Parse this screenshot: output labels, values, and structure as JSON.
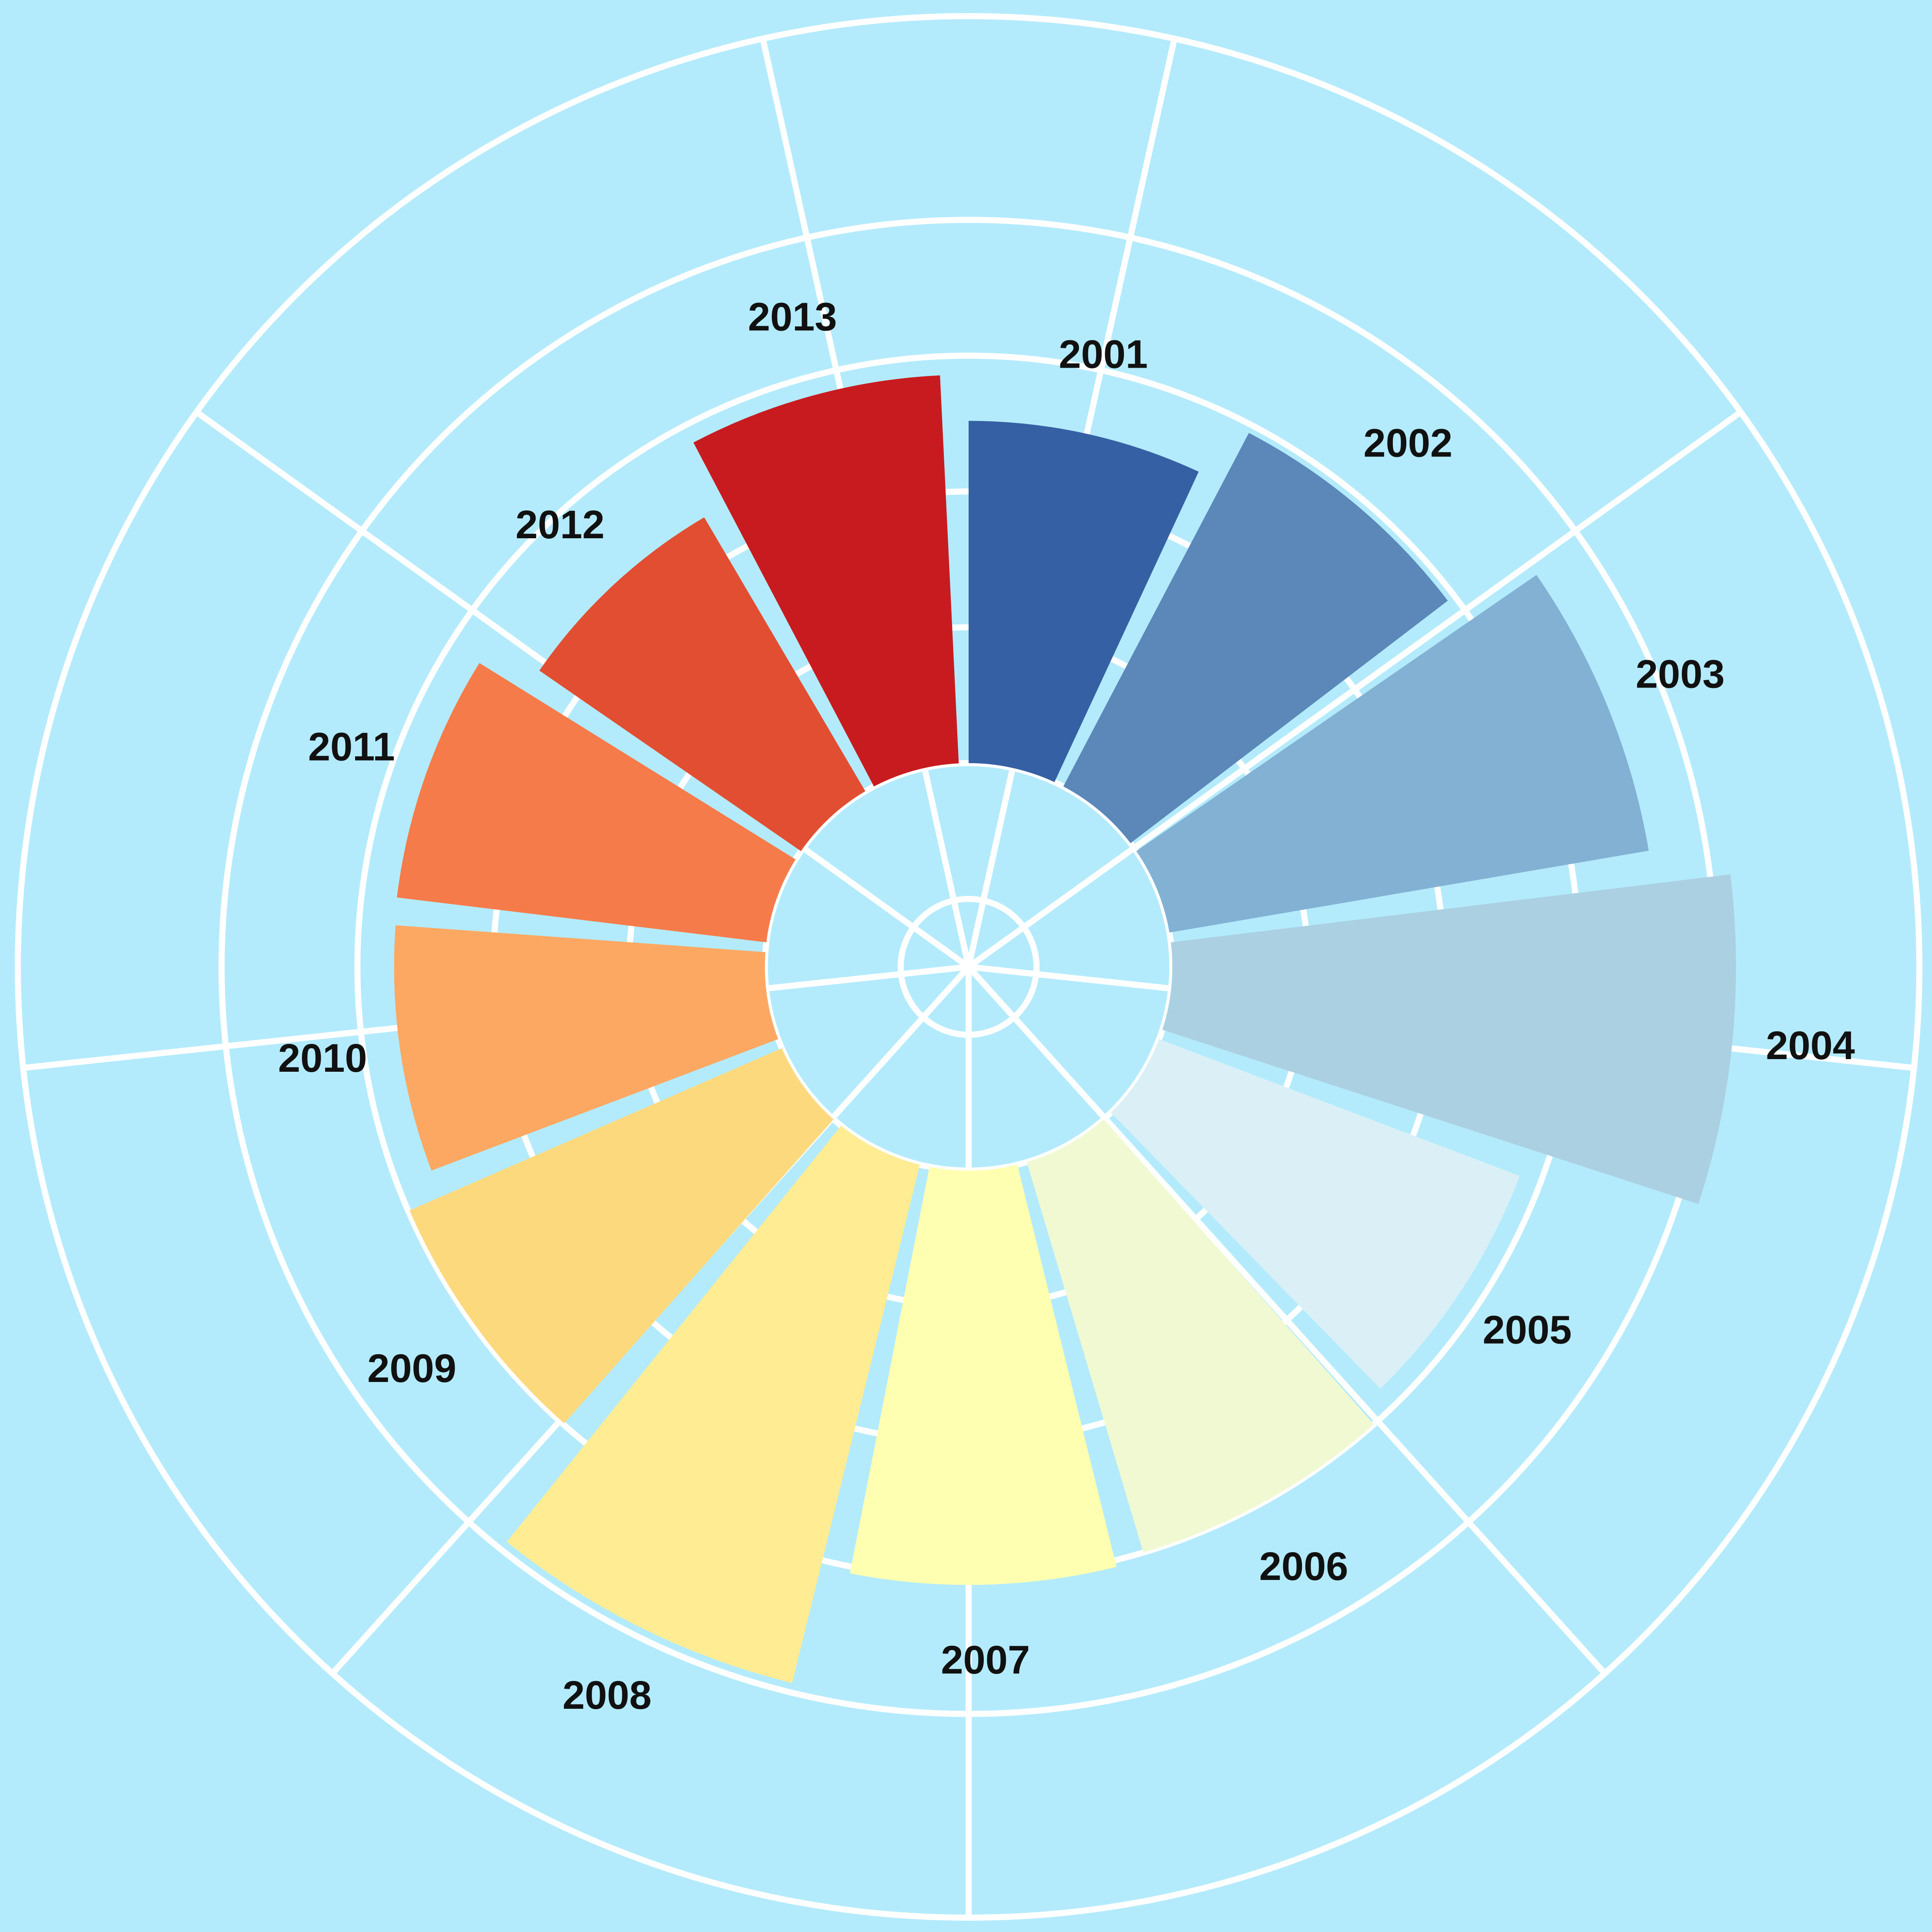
{
  "chart_data": {
    "type": "bar",
    "coord": "polar",
    "categories": [
      "2001",
      "2002",
      "2003",
      "2004",
      "2005",
      "2006",
      "2007",
      "2008",
      "2009",
      "2010",
      "2011",
      "2012",
      "2013"
    ],
    "values": [
      2.52,
      2.94,
      3.58,
      4.15,
      2.84,
      3.0,
      3.05,
      3.93,
      2.99,
      2.73,
      2.74,
      2.34,
      2.86
    ],
    "colors": [
      "#3660a4",
      "#5b87b9",
      "#82b1d3",
      "#abd0e2",
      "#daf0f6",
      "#f1f9d2",
      "#ffffb1",
      "#ffec93",
      "#fdd97e",
      "#fca862",
      "#f67b4a",
      "#e24e32",
      "#c81b1f"
    ],
    "ylim": [
      -1.5,
      5.5
    ],
    "yticks": [
      -1,
      0,
      1,
      2,
      3,
      4
    ],
    "grid": true,
    "background": "#b3ebfc"
  }
}
